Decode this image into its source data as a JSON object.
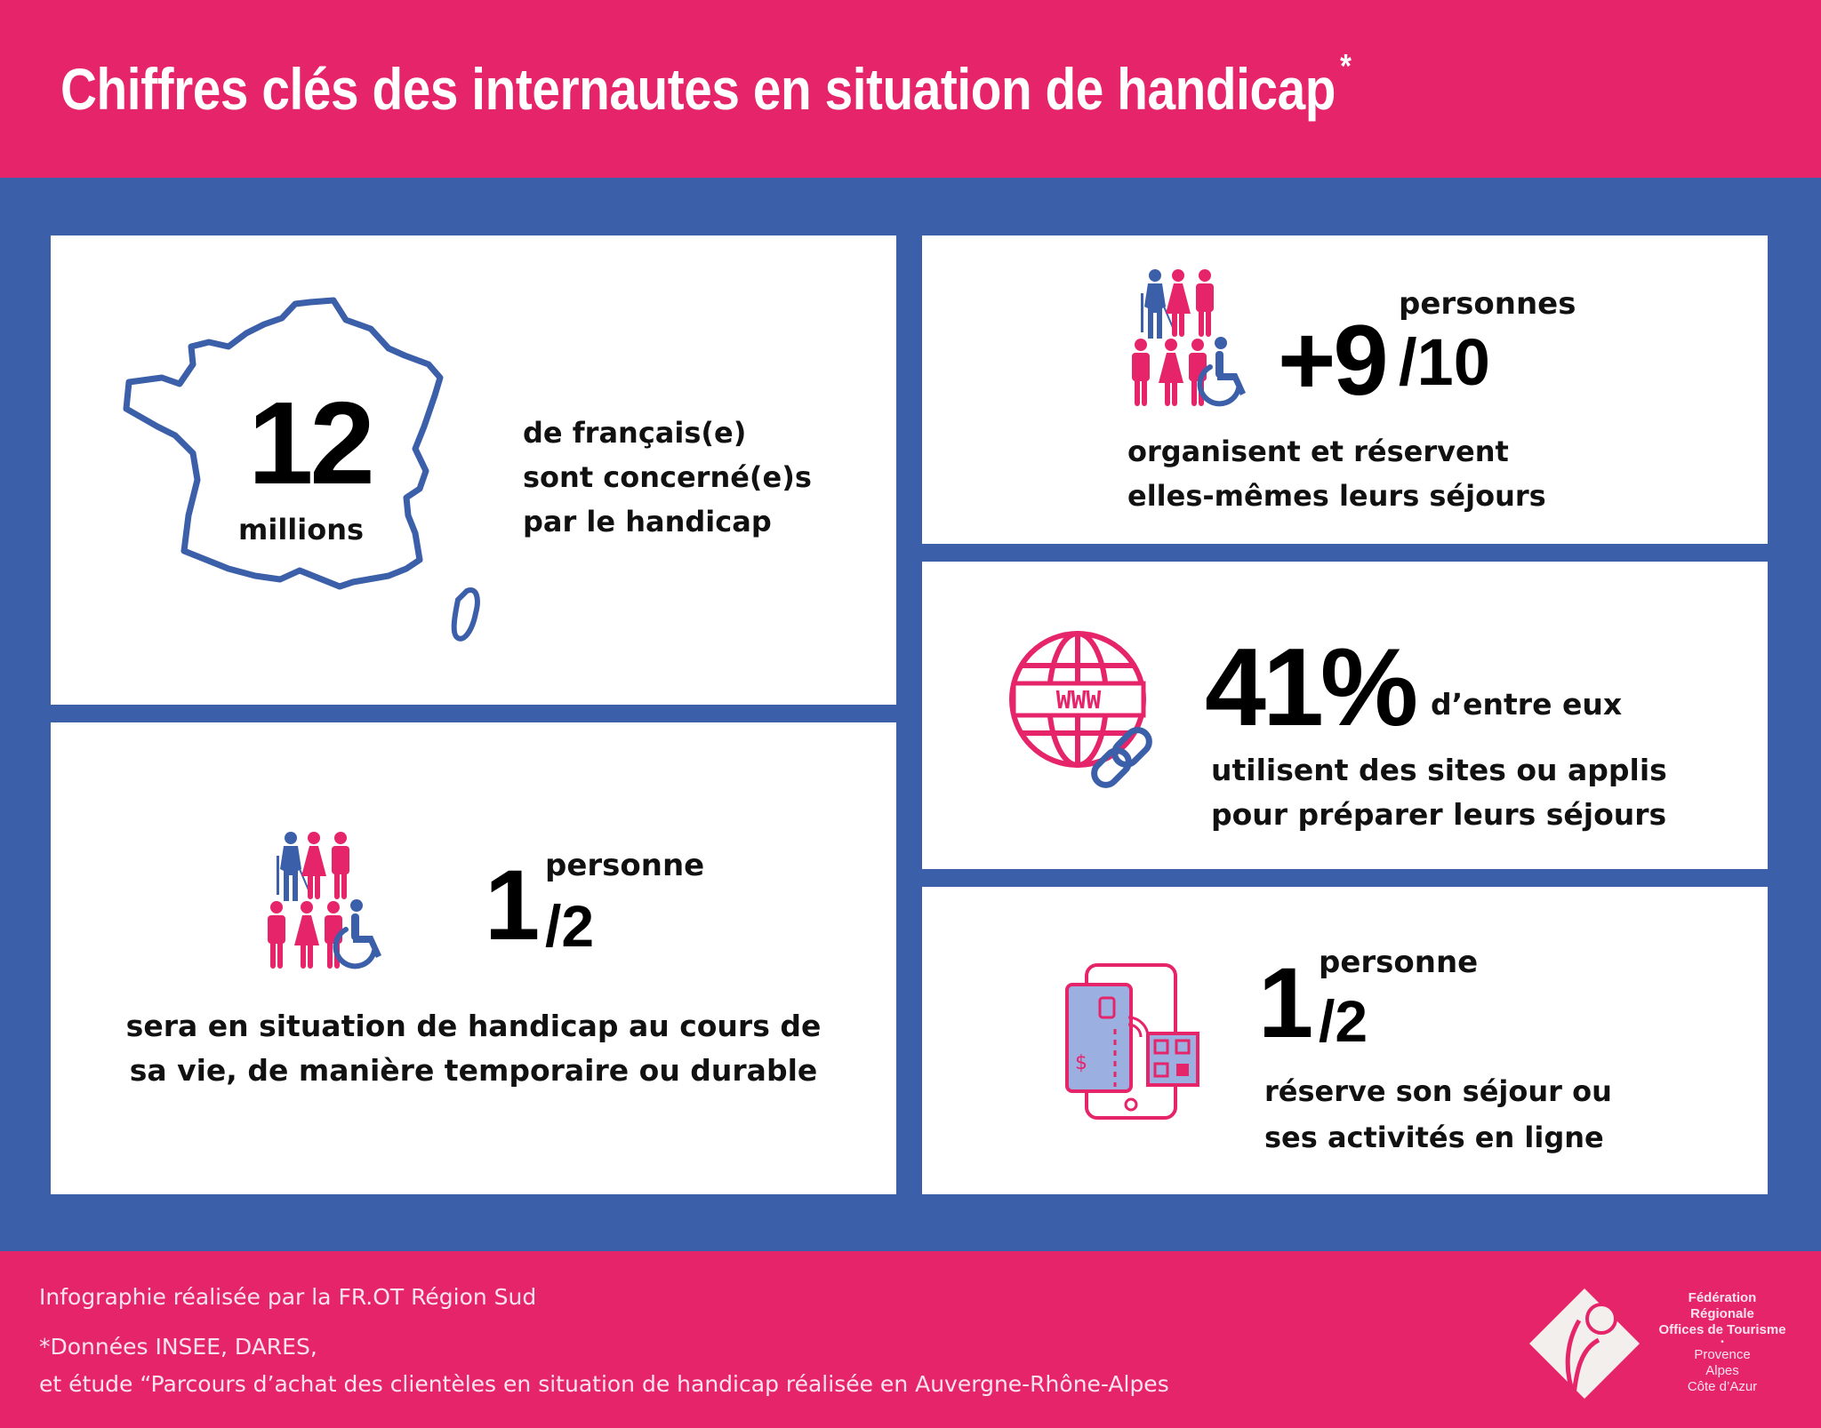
{
  "header": {
    "title": "Chiffres clés des internautes en situation de handicap",
    "asterisk": "*"
  },
  "colors": {
    "pink": "#E6246A",
    "blue": "#3C5FAA",
    "white": "#FFFFFF"
  },
  "stat_france": {
    "number": "12",
    "unit": "millions",
    "lines": [
      "de français(e)",
      "sont concerné(e)s",
      "par le handicap"
    ],
    "icon": "france-map-icon"
  },
  "stat_self_booking": {
    "prefix": "+9",
    "superscript": "personnes",
    "fraction": "/10",
    "lines": [
      "organisent et réservent",
      "elles-mêmes leurs séjours"
    ],
    "icon": "people-group-icon"
  },
  "stat_web": {
    "number": "41%",
    "suffix": "d’entre eux",
    "lines": [
      "utilisent des sites ou applis",
      "pour préparer leurs séjours"
    ],
    "icon": "globe-www-icon"
  },
  "stat_lifetime": {
    "number": "1",
    "superscript": "personne",
    "fraction": "/2",
    "lines": [
      "sera en situation de handicap au cours de",
      "sa vie, de manière temporaire ou durable"
    ],
    "icon": "people-group-icon"
  },
  "stat_online": {
    "number": "1",
    "superscript": "personne",
    "fraction": "/2",
    "lines": [
      "réserve son séjour ou",
      "ses activités en ligne"
    ],
    "icon": "smartphone-payment-icon"
  },
  "footer": {
    "credit": "Infographie réalisée par la FR.OT Région Sud",
    "sources_1": "*Données INSEE, DARES,",
    "sources_2": "et étude “Parcours d’achat des clientèles en situation de handicap réalisée en Auvergne-Rhône-Alpes",
    "logo_text": [
      "Fédération Régionale",
      "Offices de Tourisme",
      "Provence",
      "Alpes",
      "Côte d’Azur"
    ]
  }
}
